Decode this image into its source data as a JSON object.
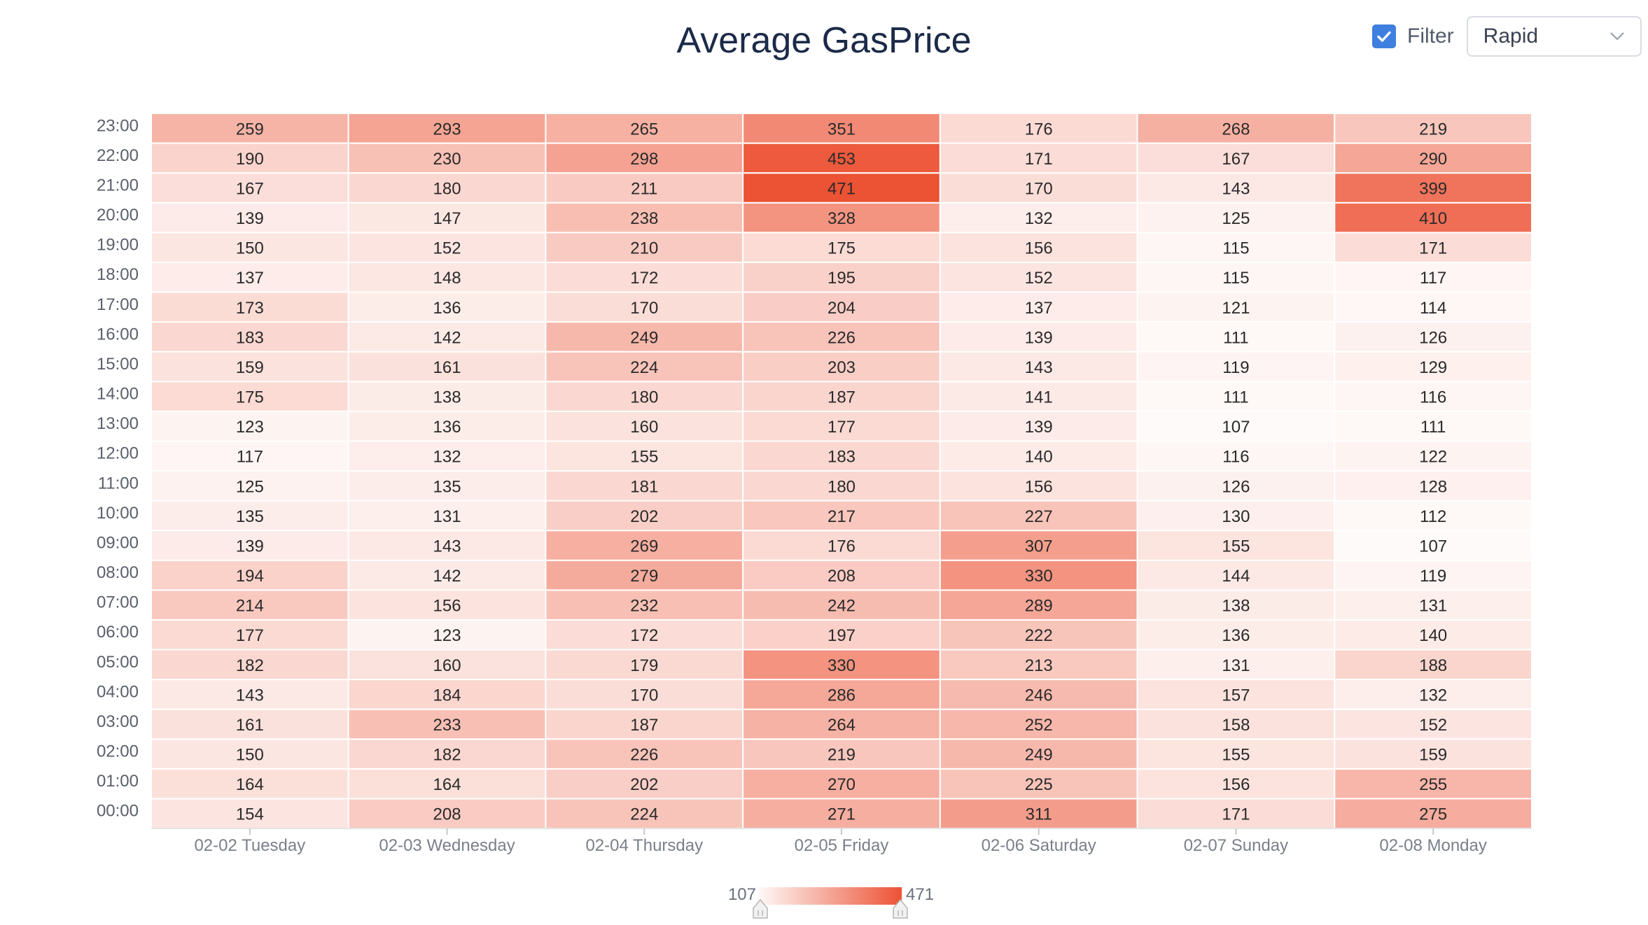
{
  "title": "Average GasPrice",
  "filter": {
    "label": "Filter",
    "checked": true
  },
  "select": {
    "value": "Rapid",
    "icon": "chevron-down-icon"
  },
  "colors": {
    "min": "#fefaf9",
    "max": "#ec5234",
    "checkbox": "#3f7fe0"
  },
  "chart_data": {
    "type": "heatmap",
    "title": "Average GasPrice",
    "x": [
      "02-02 Tuesday",
      "02-03 Wednesday",
      "02-04 Thursday",
      "02-05 Friday",
      "02-06 Saturday",
      "02-07 Sunday",
      "02-08 Monday"
    ],
    "y": [
      "00:00",
      "01:00",
      "02:00",
      "03:00",
      "04:00",
      "05:00",
      "06:00",
      "07:00",
      "08:00",
      "09:00",
      "10:00",
      "11:00",
      "12:00",
      "13:00",
      "14:00",
      "15:00",
      "16:00",
      "17:00",
      "18:00",
      "19:00",
      "20:00",
      "21:00",
      "22:00",
      "23:00"
    ],
    "values": [
      [
        154,
        164,
        150,
        161,
        143,
        182,
        177,
        214,
        194,
        139,
        135,
        125,
        117,
        123,
        175,
        159,
        183,
        173,
        137,
        150,
        139,
        167,
        190,
        259
      ],
      [
        208,
        164,
        182,
        233,
        184,
        160,
        123,
        156,
        142,
        143,
        131,
        135,
        132,
        136,
        138,
        161,
        142,
        136,
        148,
        152,
        147,
        180,
        230,
        293
      ],
      [
        224,
        202,
        226,
        187,
        170,
        179,
        172,
        232,
        279,
        269,
        202,
        181,
        155,
        160,
        180,
        224,
        249,
        170,
        172,
        210,
        238,
        211,
        298,
        265
      ],
      [
        271,
        270,
        219,
        264,
        286,
        330,
        197,
        242,
        208,
        176,
        217,
        180,
        183,
        177,
        187,
        203,
        226,
        204,
        195,
        175,
        328,
        471,
        453,
        351
      ],
      [
        311,
        225,
        249,
        252,
        246,
        213,
        222,
        289,
        330,
        307,
        227,
        156,
        140,
        139,
        141,
        143,
        139,
        137,
        152,
        156,
        132,
        170,
        171,
        176
      ],
      [
        171,
        156,
        155,
        158,
        157,
        131,
        136,
        138,
        144,
        155,
        130,
        126,
        116,
        107,
        111,
        119,
        111,
        121,
        115,
        115,
        125,
        143,
        167,
        268
      ],
      [
        275,
        255,
        159,
        152,
        132,
        188,
        140,
        131,
        119,
        107,
        112,
        128,
        122,
        111,
        116,
        129,
        126,
        114,
        117,
        171,
        410,
        399,
        290,
        219
      ]
    ],
    "visual_map": {
      "min": 107,
      "max": 471,
      "min_label": "107",
      "max_label": "471"
    }
  }
}
